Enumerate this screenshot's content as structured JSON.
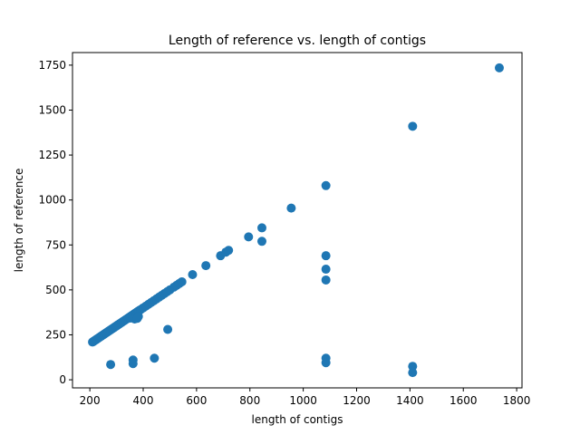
{
  "chart_data": {
    "type": "scatter",
    "title": "Length of reference vs. length of contigs",
    "xlabel": "length of contigs",
    "ylabel": "length of reference",
    "xlim": [
      135,
      1820
    ],
    "ylim": [
      -45,
      1820
    ],
    "xticks": [
      200,
      400,
      600,
      800,
      1000,
      1200,
      1400,
      1600,
      1800
    ],
    "yticks": [
      0,
      250,
      500,
      750,
      1000,
      1250,
      1500,
      1750
    ],
    "grid": false,
    "marker_color": "#1f77b4",
    "series": [
      {
        "points": [
          [
            210,
            210
          ],
          [
            214,
            214
          ],
          [
            218,
            218
          ],
          [
            222,
            222
          ],
          [
            226,
            226
          ],
          [
            230,
            230
          ],
          [
            234,
            234
          ],
          [
            238,
            238
          ],
          [
            242,
            242
          ],
          [
            246,
            246
          ],
          [
            250,
            250
          ],
          [
            254,
            254
          ],
          [
            258,
            258
          ],
          [
            262,
            262
          ],
          [
            266,
            266
          ],
          [
            270,
            270
          ],
          [
            274,
            274
          ],
          [
            278,
            278
          ],
          [
            282,
            282
          ],
          [
            286,
            286
          ],
          [
            290,
            290
          ],
          [
            294,
            294
          ],
          [
            298,
            298
          ],
          [
            302,
            302
          ],
          [
            306,
            306
          ],
          [
            310,
            310
          ],
          [
            315,
            315
          ],
          [
            320,
            320
          ],
          [
            325,
            325
          ],
          [
            330,
            330
          ],
          [
            335,
            335
          ],
          [
            340,
            340
          ],
          [
            345,
            345
          ],
          [
            350,
            350
          ],
          [
            355,
            355
          ],
          [
            360,
            360
          ],
          [
            365,
            365
          ],
          [
            370,
            370
          ],
          [
            375,
            375
          ],
          [
            380,
            380
          ],
          [
            385,
            385
          ],
          [
            390,
            390
          ],
          [
            400,
            400
          ],
          [
            410,
            410
          ],
          [
            420,
            420
          ],
          [
            430,
            430
          ],
          [
            440,
            440
          ],
          [
            450,
            450
          ],
          [
            460,
            460
          ],
          [
            470,
            470
          ],
          [
            480,
            480
          ],
          [
            490,
            490
          ],
          [
            500,
            500
          ],
          [
            515,
            515
          ],
          [
            525,
            525
          ],
          [
            535,
            535
          ],
          [
            545,
            545
          ],
          [
            352,
            343
          ],
          [
            362,
            345
          ],
          [
            372,
            348
          ],
          [
            382,
            352
          ],
          [
            368,
            338
          ],
          [
            378,
            342
          ],
          [
            585,
            585
          ],
          [
            635,
            635
          ],
          [
            690,
            690
          ],
          [
            710,
            710
          ],
          [
            720,
            720
          ],
          [
            795,
            795
          ],
          [
            845,
            845
          ],
          [
            845,
            770
          ],
          [
            955,
            955
          ],
          [
            1085,
            1080
          ],
          [
            1085,
            690
          ],
          [
            1085,
            615
          ],
          [
            1085,
            555
          ],
          [
            1085,
            120
          ],
          [
            1085,
            95
          ],
          [
            1410,
            1410
          ],
          [
            1410,
            75
          ],
          [
            1410,
            40
          ],
          [
            1735,
            1735
          ],
          [
            492,
            280
          ],
          [
            278,
            85
          ],
          [
            362,
            110
          ],
          [
            362,
            90
          ],
          [
            442,
            120
          ]
        ]
      }
    ]
  }
}
